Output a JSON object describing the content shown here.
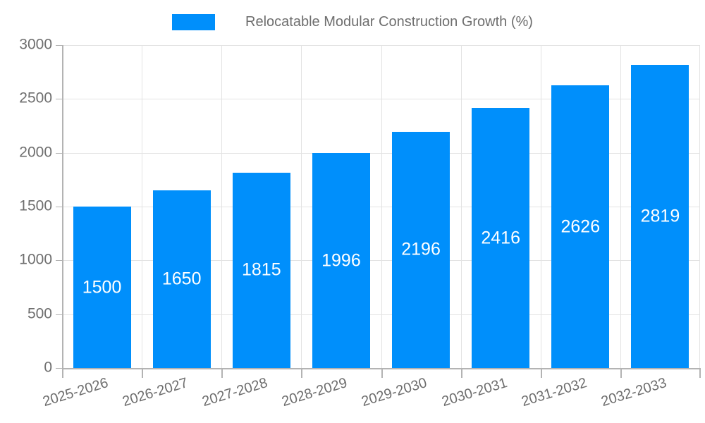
{
  "legend": {
    "label": "Relocatable Modular Construction Growth (%)"
  },
  "chart_data": {
    "type": "bar",
    "title": "Relocatable Modular Construction Growth (%)",
    "categories": [
      "2025-2026",
      "2026-2027",
      "2027-2028",
      "2028-2029",
      "2029-2030",
      "2030-2031",
      "2031-2032",
      "2032-2033"
    ],
    "series": [
      {
        "name": "Relocatable Modular Construction Growth (%)",
        "values": [
          1500,
          1650,
          1815,
          1996,
          2196,
          2416,
          2626,
          2819
        ]
      }
    ],
    "bar_value_labels": [
      "1500",
      "1650",
      "1815",
      "1996",
      "2196",
      "2416",
      "2626",
      "2819"
    ],
    "xlabel": "",
    "ylabel": "",
    "ylim": [
      0,
      3000
    ],
    "yticks": [
      0,
      500,
      1000,
      1500,
      2000,
      2500,
      3000
    ],
    "grid": true,
    "legend_position": "top-center",
    "x_label_rotation_deg": -17,
    "colors": {
      "bar": "#008FFB",
      "grid": "#e3e3e3",
      "axis": "#b3b3b3",
      "tick_label": "#6e6e6e",
      "bar_label": "#ffffff",
      "background": "#ffffff"
    }
  }
}
